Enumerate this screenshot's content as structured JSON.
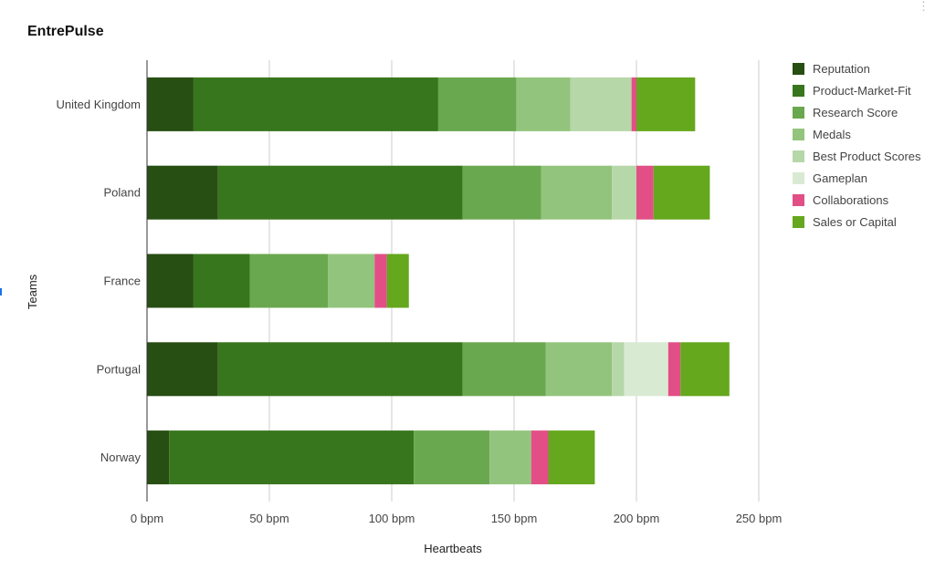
{
  "title": "EntrePulse",
  "chart_data": {
    "type": "bar",
    "orientation": "horizontal",
    "stacked": true,
    "title": "EntrePulse",
    "xlabel": "Heartbeats",
    "ylabel": "Teams",
    "xlim": [
      0,
      250
    ],
    "x_ticks": [
      0,
      50,
      100,
      150,
      200,
      250
    ],
    "x_tick_labels": [
      "0 bpm",
      "50 bpm",
      "100 bpm",
      "150 bpm",
      "200 bpm",
      "250 bpm"
    ],
    "grid": true,
    "legend_position": "right",
    "categories": [
      "United Kingdom",
      "Poland",
      "France",
      "Portugal",
      "Norway"
    ],
    "series": [
      {
        "name": "Reputation",
        "color": "#274e13",
        "values": [
          19,
          29,
          19,
          29,
          9
        ]
      },
      {
        "name": "Product-Market-Fit",
        "color": "#38761d",
        "values": [
          100,
          100,
          23,
          100,
          100
        ]
      },
      {
        "name": "Research Score",
        "color": "#6aa84f",
        "values": [
          32,
          32,
          32,
          34,
          31
        ]
      },
      {
        "name": "Medals",
        "color": "#93c47d",
        "values": [
          22,
          29,
          19,
          27,
          17
        ]
      },
      {
        "name": "Best Product Scores",
        "color": "#b6d7a8",
        "values": [
          25,
          10,
          0,
          5,
          0
        ]
      },
      {
        "name": "Gameplan",
        "color": "#d9ead3",
        "values": [
          0,
          0,
          0,
          18,
          0
        ]
      },
      {
        "name": "Collaborations",
        "color": "#e24f86",
        "values": [
          2,
          7,
          5,
          5,
          7
        ]
      },
      {
        "name": "Sales or Capital",
        "color": "#65a71d",
        "values": [
          24,
          23,
          9,
          20,
          19
        ]
      }
    ]
  }
}
